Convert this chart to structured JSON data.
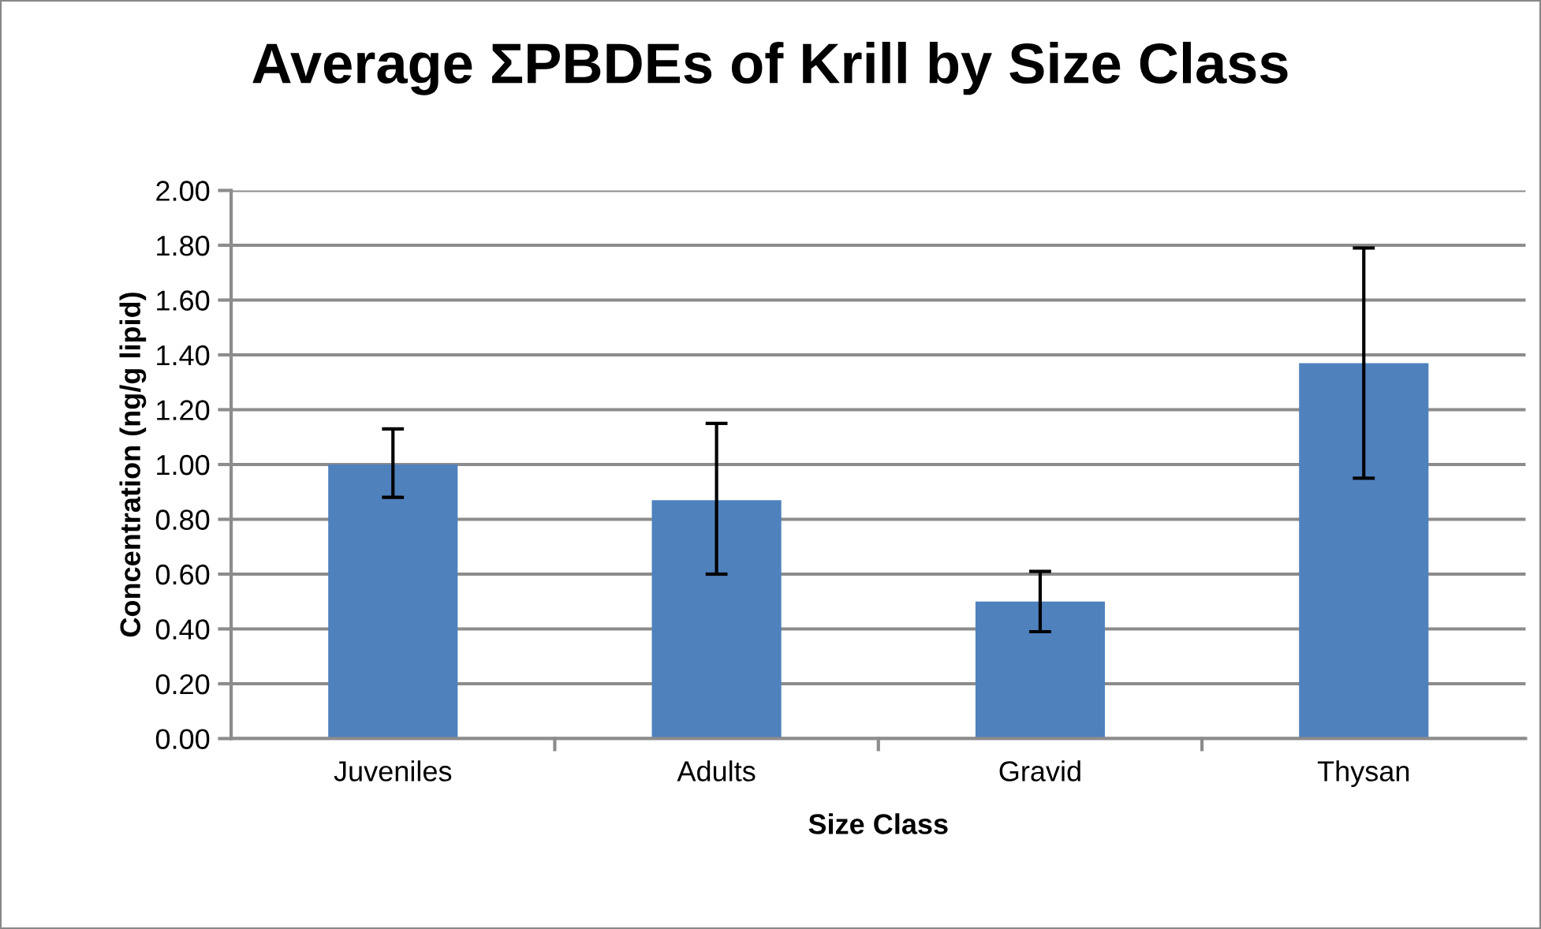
{
  "chart_data": {
    "type": "bar",
    "title": "Average ΣPBDEs of Krill by Size Class",
    "xlabel": "Size Class",
    "ylabel": "Concentration (ng/g lipid)",
    "categories": [
      "Juveniles",
      "Adults",
      "Gravid",
      "Thysan"
    ],
    "values": [
      1.0,
      0.87,
      0.5,
      1.37
    ],
    "errors": [
      [
        0.88,
        1.13
      ],
      [
        0.6,
        1.15
      ],
      [
        0.39,
        0.61
      ],
      [
        0.95,
        1.79
      ]
    ],
    "color": "#4f81bd",
    "ylim": [
      0,
      2
    ],
    "yticks": [
      {
        "value": 0,
        "label": "0.00"
      },
      {
        "value": 0.2,
        "label": "0.20"
      },
      {
        "value": 0.4,
        "label": "0.40"
      },
      {
        "value": 0.6,
        "label": "0.60"
      },
      {
        "value": 0.8,
        "label": "0.80"
      },
      {
        "value": 1.0,
        "label": "1.00"
      },
      {
        "value": 1.2,
        "label": "1.20"
      },
      {
        "value": 1.4,
        "label": "1.40"
      },
      {
        "value": 1.6,
        "label": "1.60"
      },
      {
        "value": 1.8,
        "label": "1.80"
      },
      {
        "value": 2.0,
        "label": "2.00"
      }
    ],
    "grid": "y",
    "legend": false
  }
}
